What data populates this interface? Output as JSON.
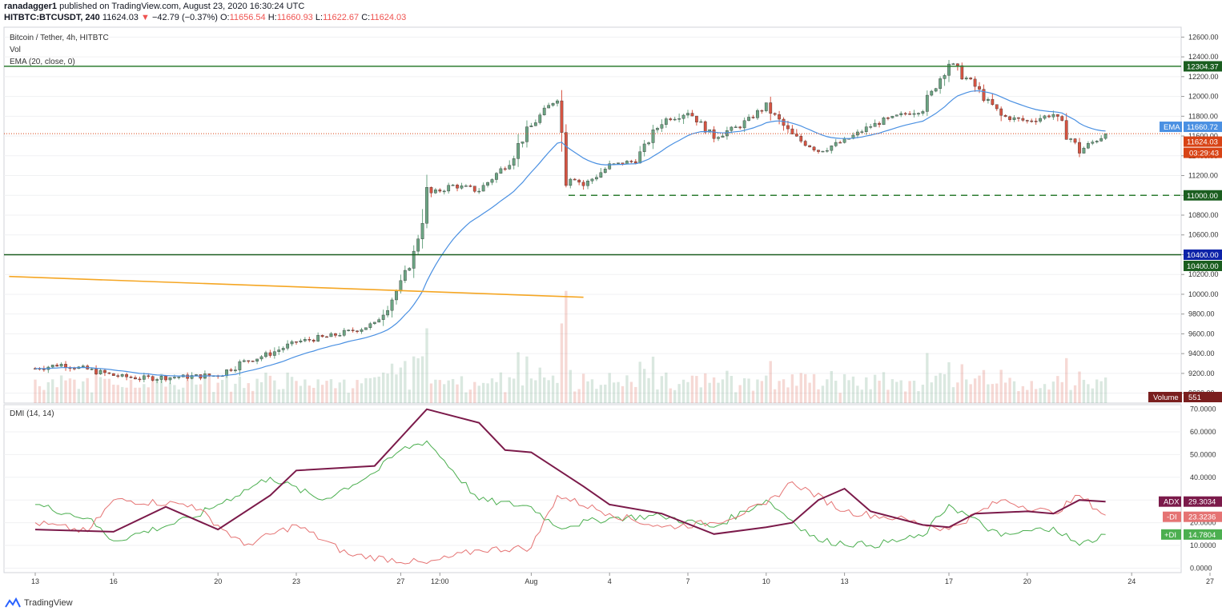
{
  "header": {
    "author": "ranadagger1",
    "published_text": "published on TradingView.com, August 23, 2020 16:30:24 UTC",
    "symbol": "HITBTC:BTCUSDT, 240",
    "last": "11624.03",
    "change": "−42.79 (−0.37%)",
    "o_label": "O:",
    "o": "11656.54",
    "h_label": "H:",
    "h": "11660.93",
    "l_label": "L:",
    "l": "11622.67",
    "c_label": "C:",
    "c": "11624.03"
  },
  "legend": {
    "title": "Bitcoin / Tether, 4h, HITBTC",
    "vol": "Vol",
    "ema": "EMA (20, close, 0)",
    "dmi": "DMI (14, 14)"
  },
  "price_axis": {
    "ticks": [
      "12600.00",
      "12400.00",
      "12200.00",
      "12000.00",
      "11800.00",
      "11600.00",
      "11400.00",
      "11200.00",
      "11000.00",
      "10800.00",
      "10600.00",
      "10400.00",
      "10200.00",
      "10000.00",
      "9800.00",
      "9600.00",
      "9400.00",
      "9200.00",
      "9000.00"
    ]
  },
  "dmi_axis": {
    "ticks": [
      "70.0000",
      "60.0000",
      "50.0000",
      "40.0000",
      "30.0000",
      "20.0000",
      "10.0000",
      "0.0000"
    ]
  },
  "time_axis": {
    "labels": [
      "13",
      "16",
      "20",
      "23",
      "27",
      "12:00",
      "Aug",
      "4",
      "7",
      "10",
      "13",
      "17",
      "20",
      "24",
      "27"
    ]
  },
  "tags": {
    "resistance": "12304.37",
    "ema_label": "EMA",
    "ema_value": "11660.72",
    "last_price": "11624.03",
    "countdown": "03:29:43",
    "support_dashed": "11000.00",
    "support_blue": "10400.00",
    "support_green": "10400.00",
    "volume_label": "Volume",
    "volume_value": "551",
    "adx_label": "ADX",
    "adx_value": "29.3034",
    "mdi_label": "-DI",
    "mdi_value": "23.3236",
    "pdi_label": "+DI",
    "pdi_value": "14.7804"
  },
  "logo_text": "TradingView",
  "colors": {
    "up": "#6ba583",
    "down": "#d75442",
    "ema": "#4a90e2",
    "resistance": "#2e7d32",
    "trend": "#f5a623",
    "adx": "#7b1a4a",
    "plus_di": "#4caf50",
    "minus_di": "#e57373",
    "last_line": "#d84315"
  },
  "chart_data": [
    {
      "type": "candlestick",
      "title": "Bitcoin / Tether, 4h, HITBTC",
      "ylim": [
        8900,
        12700
      ],
      "x_domain": [
        "Jul 13",
        "Aug 27"
      ],
      "close_path": [
        {
          "x": "Jul 13",
          "y": 9250
        },
        {
          "x": "Jul 14",
          "y": 9290
        },
        {
          "x": "Jul 15",
          "y": 9240
        },
        {
          "x": "Jul 16",
          "y": 9180
        },
        {
          "x": "Jul 17",
          "y": 9150
        },
        {
          "x": "Jul 18",
          "y": 9160
        },
        {
          "x": "Jul 19",
          "y": 9170
        },
        {
          "x": "Jul 20",
          "y": 9180
        },
        {
          "x": "Jul 21",
          "y": 9320
        },
        {
          "x": "Jul 22",
          "y": 9400
        },
        {
          "x": "Jul 23",
          "y": 9520
        },
        {
          "x": "Jul 24",
          "y": 9560
        },
        {
          "x": "Jul 25",
          "y": 9620
        },
        {
          "x": "Jul 26",
          "y": 9700
        },
        {
          "x": "Jul 27",
          "y": 10100
        },
        {
          "x": "Jul 27 12:00",
          "y": 10400
        },
        {
          "x": "Jul 28",
          "y": 11000
        },
        {
          "x": "Jul 29",
          "y": 11100
        },
        {
          "x": "Jul 30",
          "y": 11050
        },
        {
          "x": "Jul 31",
          "y": 11300
        },
        {
          "x": "Aug 01",
          "y": 11700
        },
        {
          "x": "Aug 02",
          "y": 12000
        },
        {
          "x": "Aug 02 08:00",
          "y": 11250
        },
        {
          "x": "Aug 03",
          "y": 11100
        },
        {
          "x": "Aug 04",
          "y": 11300
        },
        {
          "x": "Aug 05",
          "y": 11350
        },
        {
          "x": "Aug 06",
          "y": 11750
        },
        {
          "x": "Aug 07",
          "y": 11850
        },
        {
          "x": "Aug 08",
          "y": 11600
        },
        {
          "x": "Aug 09",
          "y": 11700
        },
        {
          "x": "Aug 10",
          "y": 11900
        },
        {
          "x": "Aug 11",
          "y": 11600
        },
        {
          "x": "Aug 12",
          "y": 11450
        },
        {
          "x": "Aug 13",
          "y": 11550
        },
        {
          "x": "Aug 14",
          "y": 11700
        },
        {
          "x": "Aug 15",
          "y": 11800
        },
        {
          "x": "Aug 16",
          "y": 11880
        },
        {
          "x": "Aug 17",
          "y": 12350
        },
        {
          "x": "Aug 18",
          "y": 12100
        },
        {
          "x": "Aug 19",
          "y": 11800
        },
        {
          "x": "Aug 20",
          "y": 11750
        },
        {
          "x": "Aug 21",
          "y": 11820
        },
        {
          "x": "Aug 22",
          "y": 11450
        },
        {
          "x": "Aug 23",
          "y": 11624
        }
      ],
      "ema20_last": 11660.72,
      "last_price": 11624.03,
      "levels": [
        12304.37,
        11000.0,
        10400.0
      ],
      "trendline": [
        {
          "x": "Jul 12",
          "y": 10180
        },
        {
          "x": "Aug 03",
          "y": 9970
        }
      ]
    },
    {
      "type": "line",
      "title": "DMI (14, 14)",
      "ylim": [
        -2,
        72
      ],
      "series": [
        {
          "name": "ADX",
          "points": [
            {
              "x": "Jul 13",
              "y": 17
            },
            {
              "x": "Jul 16",
              "y": 16
            },
            {
              "x": "Jul 18",
              "y": 27
            },
            {
              "x": "Jul 20",
              "y": 17
            },
            {
              "x": "Jul 22",
              "y": 32
            },
            {
              "x": "Jul 23",
              "y": 43
            },
            {
              "x": "Jul 26",
              "y": 45
            },
            {
              "x": "Jul 28",
              "y": 70
            },
            {
              "x": "Jul 30",
              "y": 64
            },
            {
              "x": "Jul 31",
              "y": 52
            },
            {
              "x": "Aug 01",
              "y": 51
            },
            {
              "x": "Aug 03",
              "y": 36
            },
            {
              "x": "Aug 04",
              "y": 28
            },
            {
              "x": "Aug 06",
              "y": 24
            },
            {
              "x": "Aug 08",
              "y": 15
            },
            {
              "x": "Aug 10",
              "y": 18
            },
            {
              "x": "Aug 11",
              "y": 20
            },
            {
              "x": "Aug 12",
              "y": 30
            },
            {
              "x": "Aug 13",
              "y": 35
            },
            {
              "x": "Aug 14",
              "y": 25
            },
            {
              "x": "Aug 16",
              "y": 19
            },
            {
              "x": "Aug 17",
              "y": 18
            },
            {
              "x": "Aug 18",
              "y": 24
            },
            {
              "x": "Aug 20",
              "y": 25
            },
            {
              "x": "Aug 21",
              "y": 24
            },
            {
              "x": "Aug 22",
              "y": 30
            },
            {
              "x": "Aug 23",
              "y": 29.3
            }
          ]
        },
        {
          "name": "-DI",
          "points": [
            {
              "x": "Jul 13",
              "y": 20
            },
            {
              "x": "Jul 15",
              "y": 16
            },
            {
              "x": "Jul 16",
              "y": 30
            },
            {
              "x": "Jul 19",
              "y": 28
            },
            {
              "x": "Jul 21",
              "y": 10
            },
            {
              "x": "Jul 23",
              "y": 19
            },
            {
              "x": "Jul 25",
              "y": 6
            },
            {
              "x": "Jul 28",
              "y": 2
            },
            {
              "x": "Jul 30",
              "y": 8
            },
            {
              "x": "Aug 01",
              "y": 9
            },
            {
              "x": "Aug 02",
              "y": 32
            },
            {
              "x": "Aug 04",
              "y": 24
            },
            {
              "x": "Aug 06",
              "y": 18
            },
            {
              "x": "Aug 08",
              "y": 20
            },
            {
              "x": "Aug 10",
              "y": 28
            },
            {
              "x": "Aug 11",
              "y": 38
            },
            {
              "x": "Aug 13",
              "y": 25
            },
            {
              "x": "Aug 15",
              "y": 22
            },
            {
              "x": "Aug 17",
              "y": 17
            },
            {
              "x": "Aug 19",
              "y": 30
            },
            {
              "x": "Aug 21",
              "y": 24
            },
            {
              "x": "Aug 22",
              "y": 32
            },
            {
              "x": "Aug 23",
              "y": 23.3
            }
          ]
        },
        {
          "name": "+DI",
          "points": [
            {
              "x": "Jul 13",
              "y": 28
            },
            {
              "x": "Jul 15",
              "y": 22
            },
            {
              "x": "Jul 16",
              "y": 12
            },
            {
              "x": "Jul 19",
              "y": 22
            },
            {
              "x": "Jul 20",
              "y": 28
            },
            {
              "x": "Jul 22",
              "y": 40
            },
            {
              "x": "Jul 24",
              "y": 30
            },
            {
              "x": "Jul 26",
              "y": 42
            },
            {
              "x": "Jul 27",
              "y": 52
            },
            {
              "x": "Jul 28",
              "y": 56
            },
            {
              "x": "Jul 30",
              "y": 30
            },
            {
              "x": "Aug 01",
              "y": 27
            },
            {
              "x": "Aug 02",
              "y": 18
            },
            {
              "x": "Aug 04",
              "y": 22
            },
            {
              "x": "Aug 06",
              "y": 23
            },
            {
              "x": "Aug 08",
              "y": 18
            },
            {
              "x": "Aug 10",
              "y": 30
            },
            {
              "x": "Aug 12",
              "y": 12
            },
            {
              "x": "Aug 14",
              "y": 10
            },
            {
              "x": "Aug 16",
              "y": 14
            },
            {
              "x": "Aug 17",
              "y": 28
            },
            {
              "x": "Aug 19",
              "y": 14
            },
            {
              "x": "Aug 21",
              "y": 18
            },
            {
              "x": "Aug 22",
              "y": 10
            },
            {
              "x": "Aug 23",
              "y": 14.8
            }
          ]
        }
      ]
    }
  ]
}
